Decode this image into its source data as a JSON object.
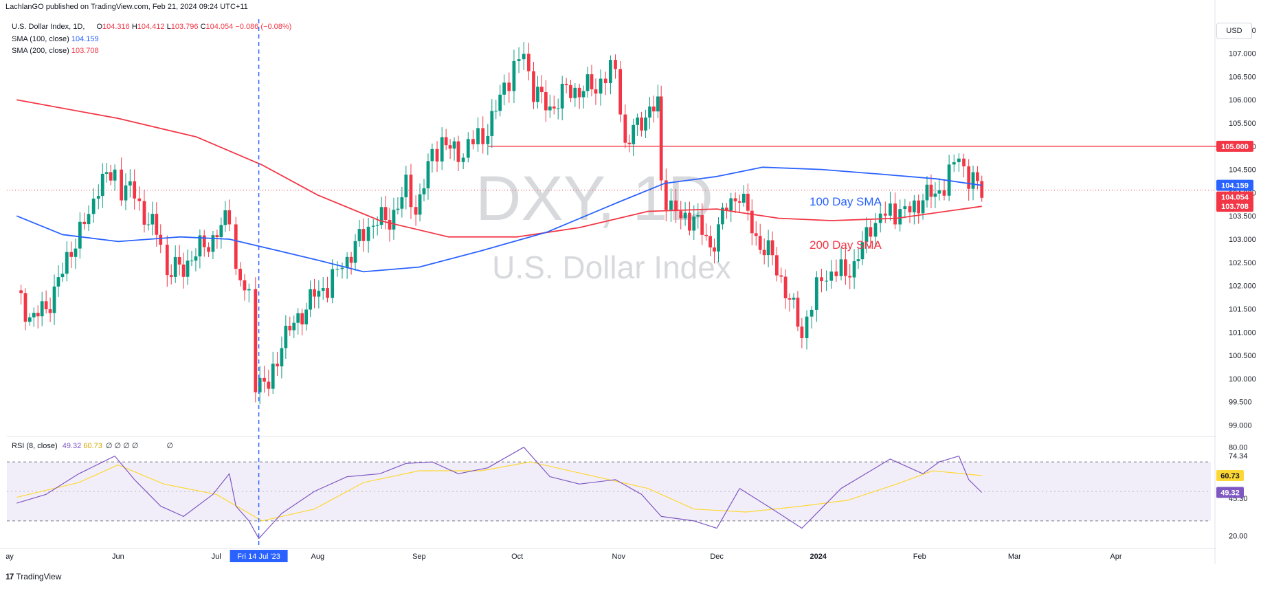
{
  "header": {
    "publisher_line": "LachlanGO published on TradingView.com, Feb 21, 2024 09:24 UTC+11"
  },
  "legend": {
    "symbol": "U.S. Dollar Index, 1D,",
    "open_label": "O",
    "open": "104.316",
    "high_label": "H",
    "high": "104.412",
    "low_label": "L",
    "low": "103.796",
    "close_label": "C",
    "close": "104.054",
    "change": "−0.086 (−0.08%)",
    "sma100_label": "SMA (100, close)",
    "sma100_value": "104.159",
    "sma200_label": "SMA (200, close)",
    "sma200_value": "103.708",
    "rsi_label": "RSI (8, close)",
    "rsi_value": "49.32",
    "rsi_ma_value": "60.73",
    "rsi_extra": [
      "∅",
      "∅",
      "∅",
      "∅",
      "∅"
    ]
  },
  "currency_button": "USD",
  "watermark": {
    "symbol": "DXY, 1D",
    "name": "U.S. Dollar Index"
  },
  "annotations": {
    "sma100": "100 Day SMA",
    "sma200": "200 Day SMA"
  },
  "crosshair_date_label": "Fri 14 Jul '23",
  "footer_brand": "TradingView",
  "colors": {
    "up": "#089981",
    "down": "#f23645",
    "sma100": "#2962ff",
    "sma200": "#f23645",
    "rsi": "#7e57c2",
    "rsi_ma": "#fdd835",
    "crosshair": "#2962ff",
    "resistance": "#f23645"
  },
  "chart_data": {
    "type": "candlestick",
    "title": "U.S. Dollar Index, 1D",
    "ylim": [
      98.8,
      108.0
    ],
    "y_ticks": [
      99.0,
      99.5,
      100.0,
      100.5,
      101.0,
      101.5,
      102.0,
      102.5,
      103.0,
      103.5,
      104.0,
      104.5,
      105.0,
      105.5,
      106.0,
      106.5,
      107.0,
      107.5
    ],
    "x_ticks": [
      "ay",
      "Jun",
      "Jul",
      "Aug",
      "Sep",
      "Oct",
      "Nov",
      "Dec",
      "2024",
      "Feb",
      "Mar",
      "Apr"
    ],
    "price_tags": [
      {
        "label": "105.000",
        "value": 105.0,
        "color": "#f23645"
      },
      {
        "label": "104.159",
        "value": 104.159,
        "color": "#2962ff"
      },
      {
        "label": "104.054",
        "value": 104.054,
        "color": "#f23645"
      },
      {
        "label": "103.708",
        "value": 103.708,
        "color": "#f23645"
      }
    ],
    "horizontal_line": {
      "value": 105.0,
      "start_date": "2023-09-22"
    },
    "close_series": [
      [
        "2023-05-01",
        101.9
      ],
      [
        "2023-05-05",
        101.3
      ],
      [
        "2023-05-10",
        101.5
      ],
      [
        "2023-05-15",
        102.3
      ],
      [
        "2023-05-19",
        103.0
      ],
      [
        "2023-05-23",
        103.5
      ],
      [
        "2023-05-26",
        104.2
      ],
      [
        "2023-05-31",
        104.4
      ],
      [
        "2023-06-02",
        104.1
      ],
      [
        "2023-06-06",
        104.0
      ],
      [
        "2023-06-09",
        103.5
      ],
      [
        "2023-06-14",
        103.0
      ],
      [
        "2023-06-16",
        102.3
      ],
      [
        "2023-06-21",
        102.4
      ],
      [
        "2023-06-26",
        102.8
      ],
      [
        "2023-06-30",
        103.0
      ],
      [
        "2023-07-05",
        103.5
      ],
      [
        "2023-07-07",
        102.3
      ],
      [
        "2023-07-11",
        101.7
      ],
      [
        "2023-07-13",
        100.0
      ],
      [
        "2023-07-17",
        99.8
      ],
      [
        "2023-07-21",
        100.8
      ],
      [
        "2023-07-26",
        101.3
      ],
      [
        "2023-07-31",
        101.8
      ],
      [
        "2023-08-04",
        102.0
      ],
      [
        "2023-08-10",
        102.6
      ],
      [
        "2023-08-15",
        103.1
      ],
      [
        "2023-08-18",
        103.4
      ],
      [
        "2023-08-23",
        103.4
      ],
      [
        "2023-08-28",
        104.1
      ],
      [
        "2023-08-31",
        103.6
      ],
      [
        "2023-09-05",
        104.8
      ],
      [
        "2023-09-08",
        105.1
      ],
      [
        "2023-09-13",
        104.8
      ],
      [
        "2023-09-19",
        105.2
      ],
      [
        "2023-09-22",
        105.3
      ],
      [
        "2023-09-27",
        106.3
      ],
      [
        "2023-10-03",
        107.0
      ],
      [
        "2023-10-06",
        106.2
      ],
      [
        "2023-10-11",
        105.8
      ],
      [
        "2023-10-16",
        106.2
      ],
      [
        "2023-10-20",
        106.2
      ],
      [
        "2023-10-25",
        106.3
      ],
      [
        "2023-10-31",
        106.7
      ],
      [
        "2023-11-03",
        105.0
      ],
      [
        "2023-11-08",
        105.6
      ],
      [
        "2023-11-13",
        105.9
      ],
      [
        "2023-11-14",
        104.1
      ],
      [
        "2023-11-20",
        103.4
      ],
      [
        "2023-11-24",
        103.5
      ],
      [
        "2023-11-29",
        102.8
      ],
      [
        "2023-12-04",
        103.7
      ],
      [
        "2023-12-08",
        104.0
      ],
      [
        "2023-12-13",
        103.0
      ],
      [
        "2023-12-18",
        102.6
      ],
      [
        "2023-12-22",
        101.9
      ],
      [
        "2023-12-27",
        101.0
      ],
      [
        "2024-01-02",
        102.2
      ],
      [
        "2024-01-08",
        102.3
      ],
      [
        "2024-01-12",
        102.4
      ],
      [
        "2024-01-17",
        103.3
      ],
      [
        "2024-01-23",
        103.6
      ],
      [
        "2024-01-29",
        103.6
      ],
      [
        "2024-02-02",
        103.9
      ],
      [
        "2024-02-07",
        104.0
      ],
      [
        "2024-02-13",
        104.8
      ],
      [
        "2024-02-16",
        104.3
      ],
      [
        "2024-02-20",
        104.054
      ]
    ],
    "sma100_series": [
      [
        "2023-05-01",
        103.5
      ],
      [
        "2023-05-15",
        103.1
      ],
      [
        "2023-06-01",
        102.95
      ],
      [
        "2023-06-20",
        103.05
      ],
      [
        "2023-07-05",
        103.0
      ],
      [
        "2023-07-20",
        102.75
      ],
      [
        "2023-08-01",
        102.55
      ],
      [
        "2023-08-15",
        102.3
      ],
      [
        "2023-09-01",
        102.4
      ],
      [
        "2023-09-20",
        102.75
      ],
      [
        "2023-10-10",
        103.15
      ],
      [
        "2023-11-01",
        103.8
      ],
      [
        "2023-11-15",
        104.2
      ],
      [
        "2023-12-01",
        104.35
      ],
      [
        "2023-12-15",
        104.55
      ],
      [
        "2024-01-02",
        104.5
      ],
      [
        "2024-01-20",
        104.4
      ],
      [
        "2024-02-06",
        104.3
      ],
      [
        "2024-02-20",
        104.159
      ]
    ],
    "sma200_series": [
      [
        "2023-05-01",
        106.0
      ],
      [
        "2023-06-01",
        105.6
      ],
      [
        "2023-06-25",
        105.2
      ],
      [
        "2023-07-15",
        104.6
      ],
      [
        "2023-08-01",
        103.95
      ],
      [
        "2023-08-20",
        103.4
      ],
      [
        "2023-09-10",
        103.05
      ],
      [
        "2023-10-01",
        103.05
      ],
      [
        "2023-10-20",
        103.25
      ],
      [
        "2023-11-10",
        103.6
      ],
      [
        "2023-12-01",
        103.65
      ],
      [
        "2023-12-20",
        103.45
      ],
      [
        "2024-01-05",
        103.4
      ],
      [
        "2024-01-25",
        103.45
      ],
      [
        "2024-02-20",
        103.708
      ]
    ],
    "rsi": {
      "ylim": [
        15,
        85
      ],
      "y_ticks": [
        20.0,
        45.3,
        74.34,
        80.0
      ],
      "levels": [
        30,
        70
      ],
      "rsi_series": [
        [
          "2023-05-01",
          42
        ],
        [
          "2023-05-10",
          48
        ],
        [
          "2023-05-20",
          62
        ],
        [
          "2023-05-31",
          74
        ],
        [
          "2023-06-06",
          58
        ],
        [
          "2023-06-14",
          40
        ],
        [
          "2023-06-21",
          33
        ],
        [
          "2023-06-30",
          48
        ],
        [
          "2023-07-05",
          62
        ],
        [
          "2023-07-07",
          40
        ],
        [
          "2023-07-11",
          30
        ],
        [
          "2023-07-14",
          18
        ],
        [
          "2023-07-21",
          35
        ],
        [
          "2023-07-31",
          50
        ],
        [
          "2023-08-10",
          60
        ],
        [
          "2023-08-20",
          62
        ],
        [
          "2023-08-28",
          69
        ],
        [
          "2023-09-05",
          70
        ],
        [
          "2023-09-13",
          62
        ],
        [
          "2023-09-22",
          66
        ],
        [
          "2023-10-03",
          80
        ],
        [
          "2023-10-11",
          60
        ],
        [
          "2023-10-20",
          55
        ],
        [
          "2023-10-31",
          58
        ],
        [
          "2023-11-08",
          48
        ],
        [
          "2023-11-14",
          33
        ],
        [
          "2023-11-24",
          30
        ],
        [
          "2023-12-01",
          25
        ],
        [
          "2023-12-08",
          52
        ],
        [
          "2023-12-18",
          38
        ],
        [
          "2023-12-27",
          25
        ],
        [
          "2024-01-08",
          52
        ],
        [
          "2024-01-17",
          64
        ],
        [
          "2024-01-23",
          72
        ],
        [
          "2024-02-02",
          62
        ],
        [
          "2024-02-07",
          70
        ],
        [
          "2024-02-13",
          74
        ],
        [
          "2024-02-16",
          58
        ],
        [
          "2024-02-20",
          49.32
        ]
      ],
      "ma_series": [
        [
          "2023-05-01",
          46
        ],
        [
          "2023-05-20",
          56
        ],
        [
          "2023-06-01",
          68
        ],
        [
          "2023-06-15",
          55
        ],
        [
          "2023-07-01",
          48
        ],
        [
          "2023-07-15",
          30
        ],
        [
          "2023-07-31",
          38
        ],
        [
          "2023-08-15",
          56
        ],
        [
          "2023-09-01",
          64
        ],
        [
          "2023-09-20",
          64
        ],
        [
          "2023-10-05",
          70
        ],
        [
          "2023-10-25",
          60
        ],
        [
          "2023-11-10",
          52
        ],
        [
          "2023-11-24",
          38
        ],
        [
          "2023-12-10",
          36
        ],
        [
          "2023-12-27",
          40
        ],
        [
          "2024-01-10",
          44
        ],
        [
          "2024-01-25",
          55
        ],
        [
          "2024-02-05",
          64
        ],
        [
          "2024-02-20",
          60.73
        ]
      ]
    }
  }
}
